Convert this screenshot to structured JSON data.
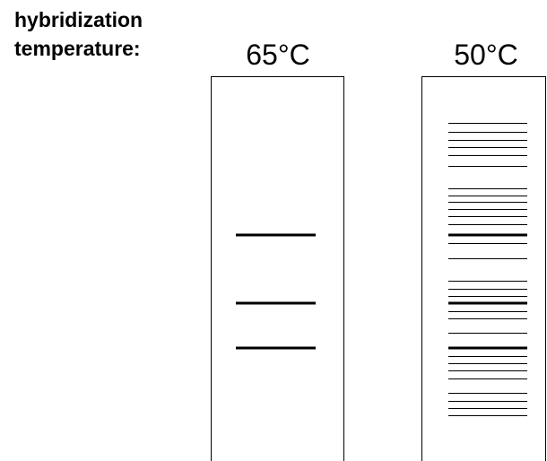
{
  "label": {
    "line1": "hybridization",
    "line2": "temperature:"
  },
  "lanes": [
    {
      "label": "65°C"
    },
    {
      "label": "50°C"
    }
  ]
}
